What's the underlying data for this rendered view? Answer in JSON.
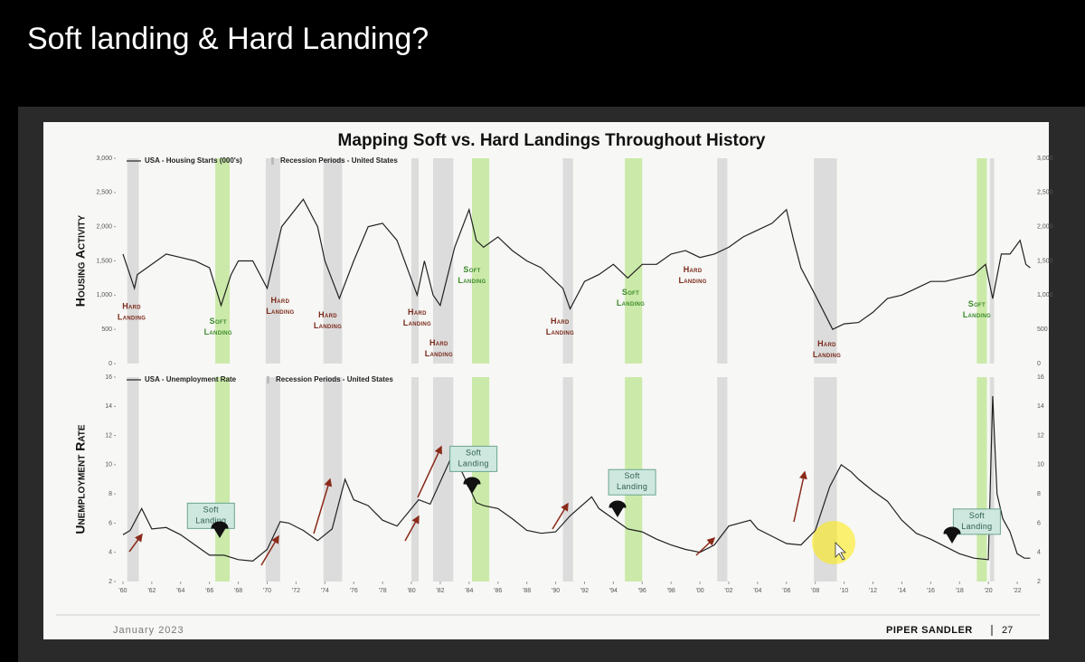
{
  "slide": {
    "title": "Soft landing & Hard Landing?",
    "date": "January 2023",
    "brand": "PIPER SANDLER",
    "page": "27"
  },
  "chart_data": [
    {
      "type": "line",
      "title": "Mapping Soft vs. Hard Landings Throughout History",
      "y_label": "Housing Activity",
      "xlim": [
        1959.5,
        2023
      ],
      "ylim": [
        0,
        3000
      ],
      "yticks": [
        {
          "value": 0,
          "label": "0"
        },
        {
          "value": 500,
          "label": "500"
        },
        {
          "value": 1000,
          "label": "1,000"
        },
        {
          "value": 1500,
          "label": "1,500"
        },
        {
          "value": 2000,
          "label": "2,000"
        },
        {
          "value": 2500,
          "label": "2,500"
        },
        {
          "value": 3000,
          "label": "3,000"
        }
      ],
      "recessions": {
        "name": "Recession Periods - United States",
        "color": "#dcdcdc",
        "ranges": [
          [
            1960.3,
            1961.1
          ],
          [
            1969.9,
            1970.9
          ],
          [
            1973.9,
            1975.2
          ],
          [
            1980.0,
            1980.5
          ],
          [
            1981.5,
            1982.9
          ],
          [
            1990.5,
            1991.2
          ],
          [
            2001.2,
            2001.9
          ],
          [
            2007.9,
            2009.5
          ],
          [
            2020.1,
            2020.4
          ]
        ]
      },
      "soft_landings": {
        "color": "#a8e06a",
        "ranges": [
          [
            1966.4,
            1967.4
          ],
          [
            1984.2,
            1985.4
          ],
          [
            1994.8,
            1996.0
          ],
          [
            2019.2,
            2019.9
          ]
        ]
      },
      "series": [
        {
          "name": "USA - Housing Starts (000's)",
          "color": "#222222",
          "x": [
            1960,
            1960.8,
            1961,
            1962,
            1963,
            1964,
            1965,
            1966,
            1966.8,
            1967.5,
            1968,
            1969,
            1970,
            1971,
            1972.5,
            1973.5,
            1974,
            1975,
            1976,
            1977,
            1978,
            1979,
            1980.4,
            1980.9,
            1981.5,
            1982,
            1983,
            1984,
            1984.5,
            1985,
            1986,
            1987,
            1988,
            1989,
            1990.5,
            1991,
            1992,
            1993,
            1994,
            1995,
            1996,
            1997,
            1998,
            1999,
            2000,
            2001,
            2002,
            2003,
            2004,
            2005,
            2006,
            2006.5,
            2007,
            2008,
            2009.2,
            2010,
            2011,
            2012,
            2013,
            2014,
            2015,
            2016,
            2017,
            2018,
            2019,
            2019.8,
            2020.3,
            2020.9,
            2021.5,
            2022.2,
            2022.6,
            2022.9
          ],
          "values": [
            1600,
            1100,
            1300,
            1450,
            1600,
            1550,
            1500,
            1400,
            850,
            1300,
            1500,
            1500,
            1100,
            2000,
            2400,
            2000,
            1500,
            950,
            1500,
            2000,
            2050,
            1800,
            1000,
            1500,
            1000,
            850,
            1700,
            2250,
            1800,
            1700,
            1850,
            1650,
            1500,
            1400,
            1100,
            800,
            1200,
            1300,
            1450,
            1250,
            1450,
            1450,
            1600,
            1650,
            1550,
            1600,
            1700,
            1850,
            1950,
            2050,
            2250,
            1800,
            1400,
            1000,
            500,
            580,
            600,
            750,
            950,
            1000,
            1100,
            1200,
            1200,
            1250,
            1300,
            1450,
            950,
            1600,
            1600,
            1800,
            1450,
            1400
          ]
        }
      ],
      "annotations": [
        {
          "text": "Hard Landing",
          "x": 1960.6,
          "y": 750,
          "color": "#7a2a1a"
        },
        {
          "text": "Soft Landing",
          "x": 1966.6,
          "y": 530,
          "color": "#3d8a2b"
        },
        {
          "text": "Hard Landing",
          "x": 1970.9,
          "y": 830,
          "color": "#7a2a1a"
        },
        {
          "text": "Hard Landing",
          "x": 1974.2,
          "y": 620,
          "color": "#7a2a1a"
        },
        {
          "text": "Hard Landing",
          "x": 1980.4,
          "y": 660,
          "color": "#7a2a1a"
        },
        {
          "text": "Hard Landing",
          "x": 1981.9,
          "y": 210,
          "color": "#7a2a1a"
        },
        {
          "text": "Soft Landing",
          "x": 1984.2,
          "y": 1280,
          "color": "#3d8a2b"
        },
        {
          "text": "Hard Landing",
          "x": 1990.3,
          "y": 530,
          "color": "#7a2a1a"
        },
        {
          "text": "Soft Landing",
          "x": 1995.2,
          "y": 950,
          "color": "#3d8a2b"
        },
        {
          "text": "Hard Landing",
          "x": 1999.5,
          "y": 1280,
          "color": "#7a2a1a"
        },
        {
          "text": "Hard Landing",
          "x": 2008.8,
          "y": 200,
          "color": "#7a2a1a"
        },
        {
          "text": "Soft Landing",
          "x": 2019.2,
          "y": 780,
          "color": "#3d8a2b"
        }
      ]
    },
    {
      "type": "line",
      "y_label": "Unemployment Rate",
      "xlim": [
        1959.5,
        2023
      ],
      "ylim": [
        2,
        16
      ],
      "yticks": [
        2,
        4,
        6,
        8,
        10,
        12,
        14,
        16
      ],
      "xticks": [
        {
          "value": 1960,
          "label": "'60"
        },
        {
          "value": 1962,
          "label": "'62"
        },
        {
          "value": 1964,
          "label": "'64"
        },
        {
          "value": 1966,
          "label": "'66"
        },
        {
          "value": 1968,
          "label": "'68"
        },
        {
          "value": 1970,
          "label": "'70"
        },
        {
          "value": 1972,
          "label": "'72"
        },
        {
          "value": 1974,
          "label": "'74"
        },
        {
          "value": 1976,
          "label": "'76"
        },
        {
          "value": 1978,
          "label": "'78"
        },
        {
          "value": 1980,
          "label": "'80"
        },
        {
          "value": 1982,
          "label": "'82"
        },
        {
          "value": 1984,
          "label": "'84"
        },
        {
          "value": 1986,
          "label": "'86"
        },
        {
          "value": 1988,
          "label": "'88"
        },
        {
          "value": 1990,
          "label": "'90"
        },
        {
          "value": 1992,
          "label": "'92"
        },
        {
          "value": 1994,
          "label": "'94"
        },
        {
          "value": 1996,
          "label": "'96"
        },
        {
          "value": 1998,
          "label": "'98"
        },
        {
          "value": 2000,
          "label": "'00"
        },
        {
          "value": 2002,
          "label": "'02"
        },
        {
          "value": 2004,
          "label": "'04"
        },
        {
          "value": 2006,
          "label": "'06"
        },
        {
          "value": 2008,
          "label": "'08"
        },
        {
          "value": 2010,
          "label": "'10"
        },
        {
          "value": 2012,
          "label": "'12"
        },
        {
          "value": 2014,
          "label": "'14"
        },
        {
          "value": 2016,
          "label": "'16"
        },
        {
          "value": 2018,
          "label": "'18"
        },
        {
          "value": 2020,
          "label": "'20"
        },
        {
          "value": 2022,
          "label": "'22"
        }
      ],
      "recessions": {
        "name": "Recession Periods - United States",
        "color": "#dcdcdc",
        "ranges": [
          [
            1960.3,
            1961.1
          ],
          [
            1969.9,
            1970.9
          ],
          [
            1973.9,
            1975.2
          ],
          [
            1980.0,
            1980.5
          ],
          [
            1981.5,
            1982.9
          ],
          [
            1990.5,
            1991.2
          ],
          [
            2001.2,
            2001.9
          ],
          [
            2007.9,
            2009.5
          ],
          [
            2020.1,
            2020.4
          ]
        ]
      },
      "soft_landings": {
        "color": "#a8e06a",
        "ranges": [
          [
            1966.4,
            1967.4
          ],
          [
            1984.2,
            1985.4
          ],
          [
            1994.8,
            1996.0
          ],
          [
            2019.2,
            2019.9
          ]
        ]
      },
      "series": [
        {
          "name": "USA - Unemployment Rate",
          "color": "#222222",
          "x": [
            1960,
            1960.5,
            1961.3,
            1962,
            1963,
            1964,
            1965,
            1966,
            1967,
            1968,
            1969,
            1970,
            1970.9,
            1971.5,
            1972.5,
            1973.5,
            1974.5,
            1975.4,
            1976,
            1977,
            1978,
            1979,
            1980.5,
            1981.3,
            1982.9,
            1983.5,
            1984.5,
            1985,
            1986,
            1987,
            1988,
            1989,
            1990,
            1991,
            1992.5,
            1993,
            1994,
            1995,
            1996,
            1997,
            1998,
            1999,
            2000,
            2001,
            2002,
            2003.5,
            2004,
            2005,
            2006,
            2007,
            2008,
            2009,
            2009.8,
            2010.5,
            2011,
            2012,
            2013,
            2014,
            2015,
            2016,
            2017,
            2018,
            2019,
            2020,
            2020.3,
            2020.6,
            2021,
            2021.5,
            2022,
            2022.5,
            2022.9
          ],
          "values": [
            5.2,
            5.5,
            7.0,
            5.6,
            5.7,
            5.2,
            4.5,
            3.8,
            3.8,
            3.5,
            3.4,
            4.2,
            6.1,
            6.0,
            5.5,
            4.8,
            5.6,
            9.0,
            7.6,
            7.2,
            6.2,
            5.8,
            7.6,
            7.3,
            10.8,
            9.5,
            7.4,
            7.2,
            7.0,
            6.3,
            5.5,
            5.3,
            5.4,
            6.5,
            7.8,
            7.0,
            6.3,
            5.6,
            5.4,
            4.9,
            4.5,
            4.2,
            4.0,
            4.5,
            5.8,
            6.2,
            5.6,
            5.1,
            4.6,
            4.5,
            5.5,
            8.5,
            10.0,
            9.5,
            9.0,
            8.2,
            7.5,
            6.2,
            5.3,
            4.9,
            4.4,
            3.9,
            3.6,
            3.5,
            14.7,
            8.0,
            6.3,
            5.4,
            3.9,
            3.6,
            3.6
          ]
        }
      ],
      "annotations": [
        {
          "text": "Soft Landing",
          "x": 1966.1,
          "y": 6.5,
          "color": "#2f5f4f",
          "box": "#cfe8df"
        },
        {
          "text": "Soft Landing",
          "x": 1984.3,
          "y": 10.4,
          "color": "#2f5f4f",
          "box": "#cfe8df"
        },
        {
          "text": "Soft Landing",
          "x": 1995.3,
          "y": 8.8,
          "color": "#2f5f4f",
          "box": "#cfe8df"
        },
        {
          "text": "Soft Landing",
          "x": 2019.2,
          "y": 6.1,
          "color": "#2f5f4f",
          "box": "#cfe8df"
        }
      ]
    }
  ]
}
